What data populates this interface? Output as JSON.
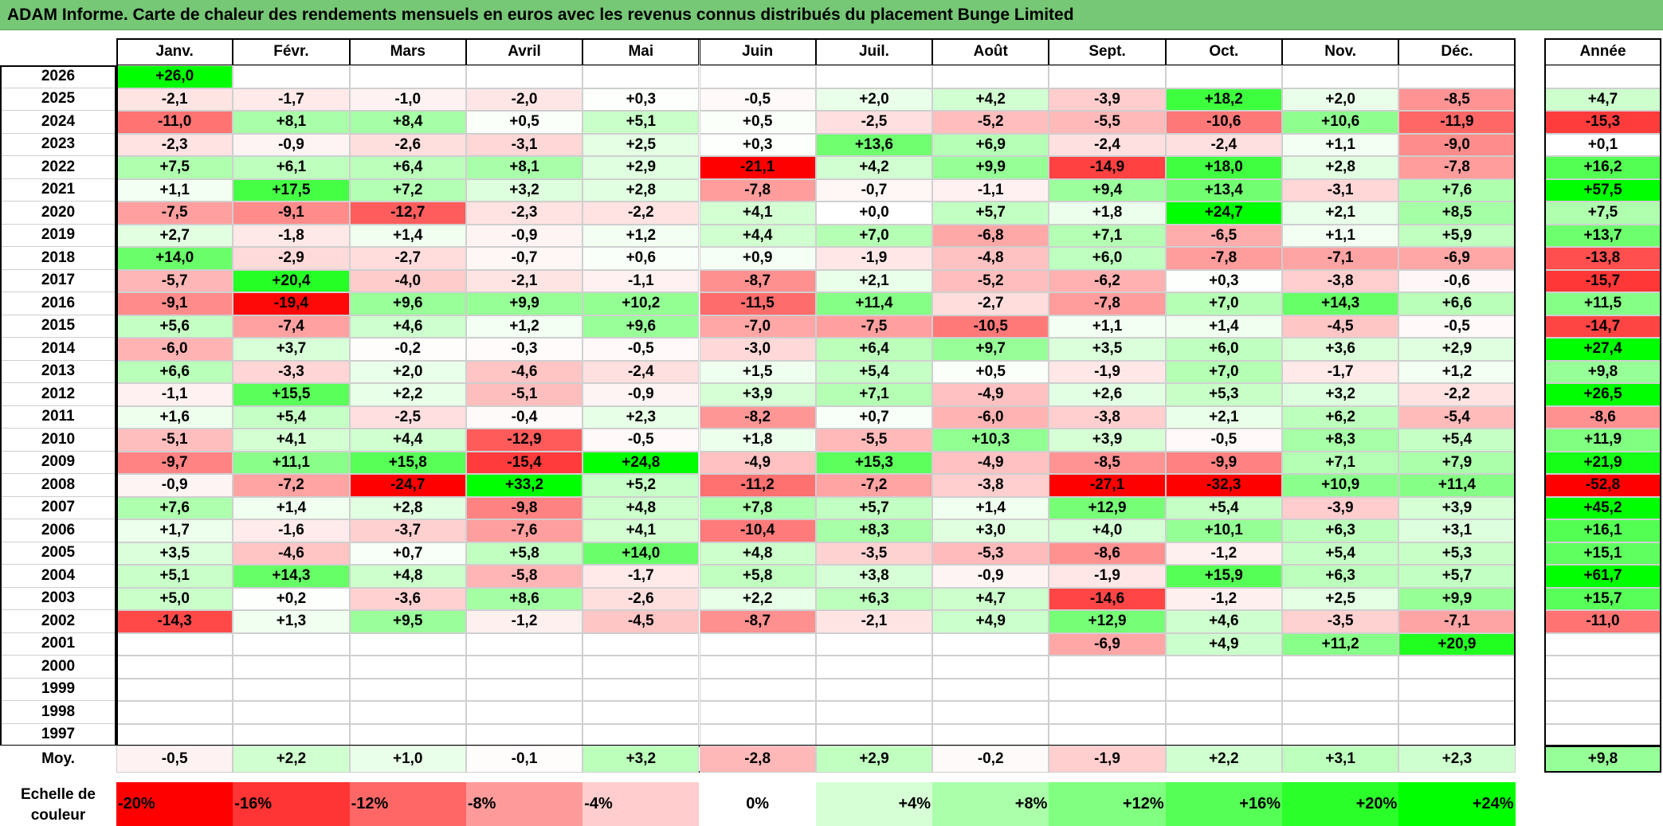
{
  "title": "ADAM Informe. Carte de chaleur des rendements mensuels en euros avec les revenus connus distribués du placement Bunge Limited",
  "chart_data": {
    "type": "heatmap",
    "months": [
      "Janv.",
      "Févr.",
      "Mars",
      "Avril",
      "Mai",
      "Juin",
      "Juil.",
      "Août",
      "Sept.",
      "Oct.",
      "Nov.",
      "Déc."
    ],
    "year_header": "Année",
    "avg_label": "Moy.",
    "rows": [
      {
        "year": "2026",
        "values": [
          "+26,0",
          "",
          "",
          "",
          "",
          "",
          "",
          "",
          "",
          "",
          "",
          ""
        ],
        "annual": ""
      },
      {
        "year": "2025",
        "values": [
          "-2,1",
          "-1,7",
          "-1,0",
          "-2,0",
          "+0,3",
          "-0,5",
          "+2,0",
          "+4,2",
          "-3,9",
          "+18,2",
          "+2,0",
          "-8,5"
        ],
        "annual": "+4,7"
      },
      {
        "year": "2024",
        "values": [
          "-11,0",
          "+8,1",
          "+8,4",
          "+0,5",
          "+5,1",
          "+0,5",
          "-2,5",
          "-5,2",
          "-5,5",
          "-10,6",
          "+10,6",
          "-11,9"
        ],
        "annual": "-15,3"
      },
      {
        "year": "2023",
        "values": [
          "-2,3",
          "-0,9",
          "-2,6",
          "-3,1",
          "+2,5",
          "+0,3",
          "+13,6",
          "+6,9",
          "-2,4",
          "-2,4",
          "+1,1",
          "-9,0"
        ],
        "annual": "+0,1"
      },
      {
        "year": "2022",
        "values": [
          "+7,5",
          "+6,1",
          "+6,4",
          "+8,1",
          "+2,9",
          "-21,1",
          "+4,2",
          "+9,9",
          "-14,9",
          "+18,0",
          "+2,8",
          "-7,8"
        ],
        "annual": "+16,2"
      },
      {
        "year": "2021",
        "values": [
          "+1,1",
          "+17,5",
          "+7,2",
          "+3,2",
          "+2,8",
          "-7,8",
          "-0,7",
          "-1,1",
          "+9,4",
          "+13,4",
          "-3,1",
          "+7,6"
        ],
        "annual": "+57,5"
      },
      {
        "year": "2020",
        "values": [
          "-7,5",
          "-9,1",
          "-12,7",
          "-2,3",
          "-2,2",
          "+4,1",
          "+0,0",
          "+5,7",
          "+1,8",
          "+24,7",
          "+2,1",
          "+8,5"
        ],
        "annual": "+7,5"
      },
      {
        "year": "2019",
        "values": [
          "+2,7",
          "-1,8",
          "+1,4",
          "-0,9",
          "+1,2",
          "+4,4",
          "+7,0",
          "-6,8",
          "+7,1",
          "-6,5",
          "+1,1",
          "+5,9"
        ],
        "annual": "+13,7"
      },
      {
        "year": "2018",
        "values": [
          "+14,0",
          "-2,9",
          "-2,7",
          "-0,7",
          "+0,6",
          "+0,9",
          "-1,9",
          "-4,8",
          "+6,0",
          "-7,8",
          "-7,1",
          "-6,9"
        ],
        "annual": "-13,8"
      },
      {
        "year": "2017",
        "values": [
          "-5,7",
          "+20,4",
          "-4,0",
          "-2,1",
          "-1,1",
          "-8,7",
          "+2,1",
          "-5,2",
          "-6,2",
          "+0,3",
          "-3,8",
          "-0,6"
        ],
        "annual": "-15,7"
      },
      {
        "year": "2016",
        "values": [
          "-9,1",
          "-19,4",
          "+9,6",
          "+9,9",
          "+10,2",
          "-11,5",
          "+11,4",
          "-2,7",
          "-7,8",
          "+7,0",
          "+14,3",
          "+6,6"
        ],
        "annual": "+11,5"
      },
      {
        "year": "2015",
        "values": [
          "+5,6",
          "-7,4",
          "+4,6",
          "+1,2",
          "+9,6",
          "-7,0",
          "-7,5",
          "-10,5",
          "+1,1",
          "+1,4",
          "-4,5",
          "-0,5"
        ],
        "annual": "-14,7"
      },
      {
        "year": "2014",
        "values": [
          "-6,0",
          "+3,7",
          "-0,2",
          "-0,3",
          "-0,5",
          "-3,0",
          "+6,4",
          "+9,7",
          "+3,5",
          "+6,0",
          "+3,6",
          "+2,9"
        ],
        "annual": "+27,4"
      },
      {
        "year": "2013",
        "values": [
          "+6,6",
          "-3,3",
          "+2,0",
          "-4,6",
          "-2,4",
          "+1,5",
          "+5,4",
          "+0,5",
          "-1,9",
          "+7,0",
          "-1,7",
          "+1,2"
        ],
        "annual": "+9,8"
      },
      {
        "year": "2012",
        "values": [
          "-1,1",
          "+15,5",
          "+2,2",
          "-5,1",
          "-0,9",
          "+3,9",
          "+7,1",
          "-4,9",
          "+2,6",
          "+5,3",
          "+3,2",
          "-2,2"
        ],
        "annual": "+26,5"
      },
      {
        "year": "2011",
        "values": [
          "+1,6",
          "+5,4",
          "-2,5",
          "-0,4",
          "+2,3",
          "-8,2",
          "+0,7",
          "-6,0",
          "-3,8",
          "+2,1",
          "+6,2",
          "-5,4"
        ],
        "annual": "-8,6"
      },
      {
        "year": "2010",
        "values": [
          "-5,1",
          "+4,1",
          "+4,4",
          "-12,9",
          "-0,5",
          "+1,8",
          "-5,5",
          "+10,3",
          "+3,9",
          "-0,5",
          "+8,3",
          "+5,4"
        ],
        "annual": "+11,9"
      },
      {
        "year": "2009",
        "values": [
          "-9,7",
          "+11,1",
          "+15,8",
          "-15,4",
          "+24,8",
          "-4,9",
          "+15,3",
          "-4,9",
          "-8,5",
          "-9,9",
          "+7,1",
          "+7,9"
        ],
        "annual": "+21,9"
      },
      {
        "year": "2008",
        "values": [
          "-0,9",
          "-7,2",
          "-24,7",
          "+33,2",
          "+5,2",
          "-11,2",
          "-7,2",
          "-3,8",
          "-27,1",
          "-32,3",
          "+10,9",
          "+11,4"
        ],
        "annual": "-52,8"
      },
      {
        "year": "2007",
        "values": [
          "+7,6",
          "+1,4",
          "+2,8",
          "-9,8",
          "+4,8",
          "+7,8",
          "+5,7",
          "+1,4",
          "+12,9",
          "+5,4",
          "-3,9",
          "+3,9"
        ],
        "annual": "+45,2"
      },
      {
        "year": "2006",
        "values": [
          "+1,7",
          "-1,6",
          "-3,7",
          "-7,6",
          "+4,1",
          "-10,4",
          "+8,3",
          "+3,0",
          "+4,0",
          "+10,1",
          "+6,3",
          "+3,1"
        ],
        "annual": "+16,1"
      },
      {
        "year": "2005",
        "values": [
          "+3,5",
          "-4,6",
          "+0,7",
          "+5,8",
          "+14,0",
          "+4,8",
          "-3,5",
          "-5,3",
          "-8,6",
          "-1,2",
          "+5,4",
          "+5,3"
        ],
        "annual": "+15,1"
      },
      {
        "year": "2004",
        "values": [
          "+5,1",
          "+14,3",
          "+4,8",
          "-5,8",
          "-1,7",
          "+5,8",
          "+3,8",
          "-0,9",
          "-1,9",
          "+15,9",
          "+6,3",
          "+5,7"
        ],
        "annual": "+61,7"
      },
      {
        "year": "2003",
        "values": [
          "+5,0",
          "+0,2",
          "-3,6",
          "+8,6",
          "-2,6",
          "+2,2",
          "+6,3",
          "+4,7",
          "-14,6",
          "-1,2",
          "+2,5",
          "+9,9"
        ],
        "annual": "+15,7"
      },
      {
        "year": "2002",
        "values": [
          "-14,3",
          "+1,3",
          "+9,5",
          "-1,2",
          "-4,5",
          "-8,7",
          "-2,1",
          "+4,9",
          "+12,9",
          "+4,6",
          "-3,5",
          "-7,1"
        ],
        "annual": "-11,0"
      },
      {
        "year": "2001",
        "values": [
          "",
          "",
          "",
          "",
          "",
          "",
          "",
          "",
          "-6,9",
          "+4,9",
          "+11,2",
          "+20,9"
        ],
        "annual": ""
      },
      {
        "year": "2000",
        "values": [
          "",
          "",
          "",
          "",
          "",
          "",
          "",
          "",
          "",
          "",
          "",
          ""
        ],
        "annual": ""
      },
      {
        "year": "1999",
        "values": [
          "",
          "",
          "",
          "",
          "",
          "",
          "",
          "",
          "",
          "",
          "",
          ""
        ],
        "annual": ""
      },
      {
        "year": "1998",
        "values": [
          "",
          "",
          "",
          "",
          "",
          "",
          "",
          "",
          "",
          "",
          "",
          ""
        ],
        "annual": ""
      },
      {
        "year": "1997",
        "values": [
          "",
          "",
          "",
          "",
          "",
          "",
          "",
          "",
          "",
          "",
          "",
          ""
        ],
        "annual": ""
      }
    ],
    "averages": [
      "-0,5",
      "+2,2",
      "+1,0",
      "-0,1",
      "+3,2",
      "-2,8",
      "+2,9",
      "-0,2",
      "-1,9",
      "+2,2",
      "+3,1",
      "+2,3"
    ],
    "avg_annual": "+9,8",
    "scale_label": "Echelle de couleur",
    "scale": [
      "-20%",
      "-16%",
      "-12%",
      "-8%",
      "-4%",
      "0%",
      "+4%",
      "+8%",
      "+12%",
      "+16%",
      "+20%",
      "+24%"
    ],
    "scale_colors": [
      "#ff0000",
      "#ff3434",
      "#ff6767",
      "#ff9a9a",
      "#ffcdcd",
      "#ffffff",
      "#d6ffd6",
      "#abffab",
      "#80ff80",
      "#55ff55",
      "#2aff2a",
      "#00ff00"
    ],
    "colors": {
      "negative": "#ff0000",
      "neutral": "#ffffff",
      "positive": "#00ff00",
      "title_bg": "#76c776"
    }
  }
}
